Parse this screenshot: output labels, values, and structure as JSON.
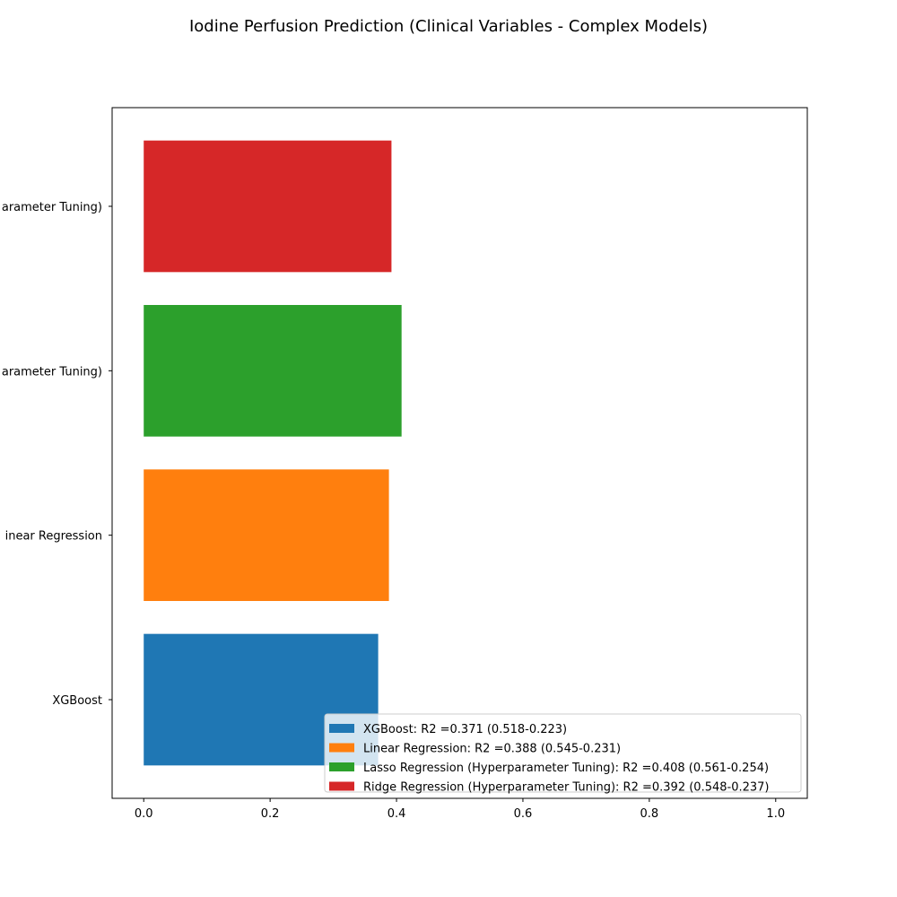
{
  "chart_data": {
    "type": "bar",
    "orientation": "horizontal",
    "title": "Iodine Perfusion Prediction (Clinical Variables - Complex Models)",
    "xlabel": "",
    "ylabel": "",
    "xlim": [
      -0.05,
      1.05
    ],
    "xticks": [
      0.0,
      0.2,
      0.4,
      0.6,
      0.8,
      1.0
    ],
    "xtick_labels": [
      "0.0",
      "0.2",
      "0.4",
      "0.6",
      "0.8",
      "1.0"
    ],
    "categories": [
      "XGBoost",
      "Linear Regression",
      "Lasso Regression (Hyperparameter Tuning)",
      "Ridge Regression (Hyperparameter Tuning)"
    ],
    "ytick_labels_visible": [
      "XGBoost",
      "inear Regression",
      "arameter Tuning)",
      "arameter Tuning)"
    ],
    "values": [
      0.371,
      0.388,
      0.408,
      0.392
    ],
    "colors": [
      "#1f77b4",
      "#ff7f0e",
      "#2ca02c",
      "#d62728"
    ],
    "grid": false,
    "legend_position": "lower-right",
    "legend": [
      "XGBoost: R2 =0.371 (0.518-0.223)",
      "Linear Regression: R2 =0.388 (0.545-0.231)",
      "Lasso Regression (Hyperparameter Tuning): R2 =0.408 (0.561-0.254)",
      "Ridge Regression (Hyperparameter Tuning): R2 =0.392 (0.548-0.237)"
    ]
  }
}
